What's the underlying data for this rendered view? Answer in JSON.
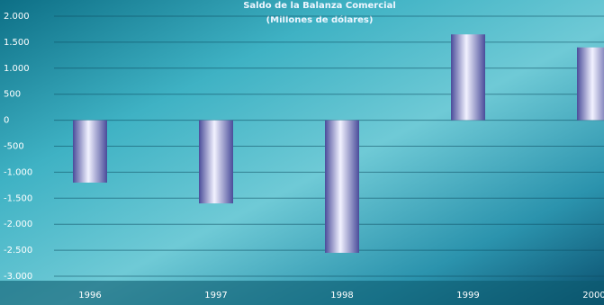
{
  "chart_data": {
    "type": "bar",
    "title": "Saldo de la Balanza Comercial",
    "subtitle": "(Millones de dólares)",
    "categories": [
      "1996",
      "1997",
      "1998",
      "1999",
      "2000"
    ],
    "values": [
      -1200,
      -1600,
      -2550,
      1650,
      1400
    ],
    "ylim": [
      -3000,
      2000
    ],
    "yticks": [
      {
        "value": 2000,
        "label": "2.000"
      },
      {
        "value": 1500,
        "label": "1.500"
      },
      {
        "value": 1000,
        "label": "1.000"
      },
      500,
      0,
      -500,
      {
        "value": -1000,
        "label": "-1.000"
      },
      {
        "value": -1500,
        "label": "-1.500"
      },
      {
        "value": -2000,
        "label": "-2.000"
      },
      {
        "value": -2500,
        "label": "-2.500"
      },
      {
        "value": -3000,
        "label": "-3.000"
      }
    ],
    "grid": true
  }
}
